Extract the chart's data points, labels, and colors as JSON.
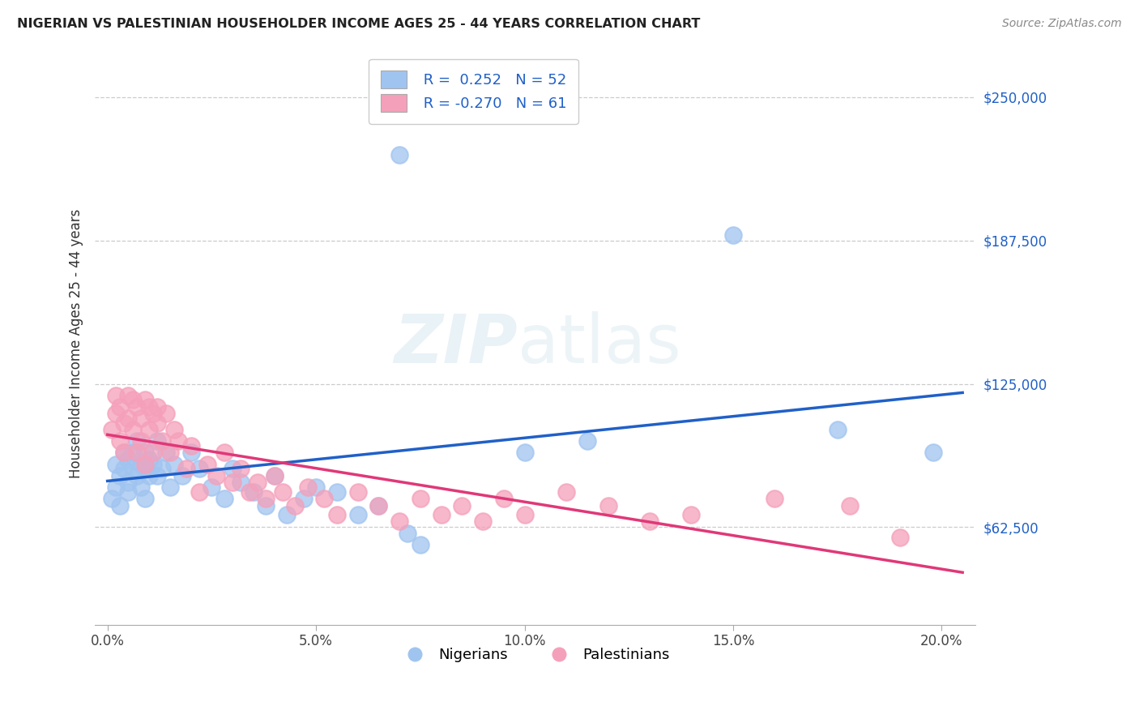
{
  "title": "NIGERIAN VS PALESTINIAN HOUSEHOLDER INCOME AGES 25 - 44 YEARS CORRELATION CHART",
  "source": "Source: ZipAtlas.com",
  "ylabel": "Householder Income Ages 25 - 44 years",
  "xlabel_ticks": [
    "0.0%",
    "5.0%",
    "10.0%",
    "15.0%",
    "20.0%"
  ],
  "xlabel_vals": [
    0.0,
    0.05,
    0.1,
    0.15,
    0.2
  ],
  "ylabel_ticks": [
    "$62,500",
    "$125,000",
    "$187,500",
    "$250,000"
  ],
  "ylabel_vals": [
    62500,
    125000,
    187500,
    250000
  ],
  "ylim": [
    20000,
    265000
  ],
  "xlim": [
    -0.003,
    0.208
  ],
  "nigerian_R": 0.252,
  "nigerian_N": 52,
  "palestinian_R": -0.27,
  "palestinian_N": 61,
  "nigerian_color": "#a0c4f0",
  "palestinian_color": "#f5a0ba",
  "nigerian_line_color": "#2060c8",
  "palestinian_line_color": "#e03878",
  "nigerian_x": [
    0.001,
    0.002,
    0.002,
    0.003,
    0.003,
    0.004,
    0.004,
    0.005,
    0.005,
    0.005,
    0.006,
    0.006,
    0.007,
    0.007,
    0.008,
    0.008,
    0.009,
    0.009,
    0.009,
    0.01,
    0.01,
    0.011,
    0.012,
    0.012,
    0.013,
    0.014,
    0.015,
    0.016,
    0.018,
    0.02,
    0.022,
    0.025,
    0.028,
    0.03,
    0.032,
    0.035,
    0.038,
    0.04,
    0.043,
    0.047,
    0.05,
    0.055,
    0.06,
    0.065,
    0.07,
    0.075,
    0.072,
    0.1,
    0.115,
    0.15,
    0.175,
    0.198
  ],
  "nigerian_y": [
    75000,
    90000,
    80000,
    85000,
    72000,
    95000,
    88000,
    82000,
    92000,
    78000,
    88000,
    95000,
    85000,
    100000,
    90000,
    80000,
    88000,
    75000,
    95000,
    85000,
    92000,
    90000,
    100000,
    85000,
    88000,
    95000,
    80000,
    90000,
    85000,
    95000,
    88000,
    80000,
    75000,
    88000,
    82000,
    78000,
    72000,
    85000,
    68000,
    75000,
    80000,
    78000,
    68000,
    72000,
    225000,
    55000,
    60000,
    95000,
    100000,
    190000,
    105000,
    95000
  ],
  "palestinian_x": [
    0.001,
    0.002,
    0.002,
    0.003,
    0.003,
    0.004,
    0.004,
    0.005,
    0.005,
    0.006,
    0.006,
    0.007,
    0.007,
    0.008,
    0.008,
    0.009,
    0.009,
    0.01,
    0.01,
    0.011,
    0.011,
    0.012,
    0.012,
    0.013,
    0.014,
    0.015,
    0.016,
    0.017,
    0.019,
    0.02,
    0.022,
    0.024,
    0.026,
    0.028,
    0.03,
    0.032,
    0.034,
    0.036,
    0.038,
    0.04,
    0.042,
    0.045,
    0.048,
    0.052,
    0.055,
    0.06,
    0.065,
    0.07,
    0.075,
    0.08,
    0.085,
    0.09,
    0.095,
    0.1,
    0.11,
    0.12,
    0.13,
    0.14,
    0.16,
    0.178,
    0.19
  ],
  "palestinian_y": [
    105000,
    120000,
    112000,
    115000,
    100000,
    108000,
    95000,
    120000,
    110000,
    118000,
    105000,
    115000,
    95000,
    110000,
    100000,
    118000,
    90000,
    105000,
    115000,
    112000,
    95000,
    108000,
    115000,
    100000,
    112000,
    95000,
    105000,
    100000,
    88000,
    98000,
    78000,
    90000,
    85000,
    95000,
    82000,
    88000,
    78000,
    82000,
    75000,
    85000,
    78000,
    72000,
    80000,
    75000,
    68000,
    78000,
    72000,
    65000,
    75000,
    68000,
    72000,
    65000,
    75000,
    68000,
    78000,
    72000,
    65000,
    68000,
    75000,
    72000,
    58000
  ]
}
